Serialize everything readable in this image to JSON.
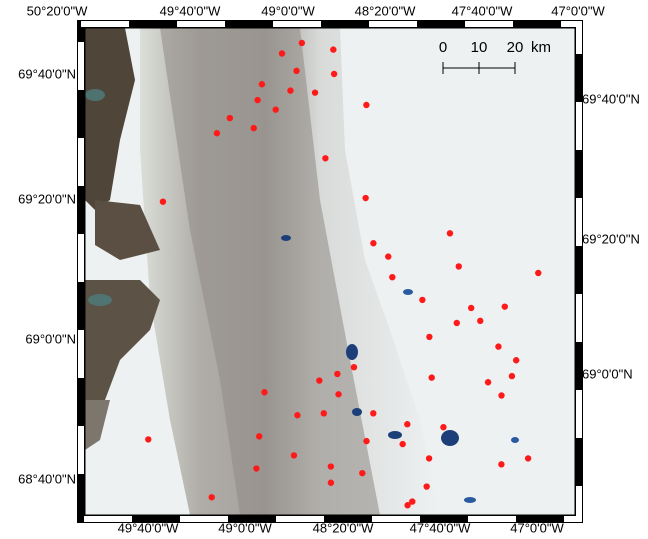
{
  "map": {
    "top_labels": [
      "50°20'0\"W",
      "49°40'0\"W",
      "49°0'0\"W",
      "48°20'0\"W",
      "47°40'0\"W",
      "47°0'0\"W"
    ],
    "bottom_labels": [
      "49°40'0\"W",
      "49°0'0\"W",
      "48°20'0\"W",
      "47°40'0\"W",
      "47°0'0\"W"
    ],
    "left_labels": [
      "69°40'0\"N",
      "69°20'0\"N",
      "69°0'0\"N",
      "68°40'0\"N"
    ],
    "right_labels": [
      "69°40'0\"N",
      "69°20'0\"N",
      "69°0'0\"N"
    ],
    "scale_bar": {
      "ticks": [
        0,
        10,
        20
      ],
      "unit": "km"
    },
    "point_color": "#ff1a1a",
    "points": [
      {
        "lon": -48.89,
        "lat": 69.79
      },
      {
        "lon": -49.02,
        "lat": 69.76
      },
      {
        "lon": -48.67,
        "lat": 69.78
      },
      {
        "lon": -48.91,
        "lat": 69.72
      },
      {
        "lon": -48.65,
        "lat": 69.72
      },
      {
        "lon": -49.14,
        "lat": 69.68
      },
      {
        "lon": -48.94,
        "lat": 69.67
      },
      {
        "lon": -48.77,
        "lat": 69.67
      },
      {
        "lon": -49.16,
        "lat": 69.64
      },
      {
        "lon": -48.41,
        "lat": 69.65
      },
      {
        "lon": -49.03,
        "lat": 69.62
      },
      {
        "lon": -49.34,
        "lat": 69.59
      },
      {
        "lon": -49.17,
        "lat": 69.57
      },
      {
        "lon": -49.42,
        "lat": 69.55
      },
      {
        "lon": -48.66,
        "lat": 69.51
      },
      {
        "lon": -49.75,
        "lat": 69.37
      },
      {
        "lon": -48.36,
        "lat": 69.42
      },
      {
        "lon": -48.28,
        "lat": 69.31
      },
      {
        "lon": -47.76,
        "lat": 69.35
      },
      {
        "lon": -48.17,
        "lat": 69.28
      },
      {
        "lon": -47.68,
        "lat": 69.27
      },
      {
        "lon": -47.13,
        "lat": 69.27
      },
      {
        "lon": -48.13,
        "lat": 69.23
      },
      {
        "lon": -47.91,
        "lat": 69.18
      },
      {
        "lon": -47.57,
        "lat": 69.17
      },
      {
        "lon": -47.34,
        "lat": 69.18
      },
      {
        "lon": -47.5,
        "lat": 69.14
      },
      {
        "lon": -47.66,
        "lat": 69.13
      },
      {
        "lon": -47.84,
        "lat": 69.09
      },
      {
        "lon": -47.36,
        "lat": 69.08
      },
      {
        "lon": -47.23,
        "lat": 69.05
      },
      {
        "lon": -48.34,
        "lat": 69.0
      },
      {
        "lon": -48.45,
        "lat": 68.98
      },
      {
        "lon": -47.8,
        "lat": 68.99
      },
      {
        "lon": -47.41,
        "lat": 68.99
      },
      {
        "lon": -47.25,
        "lat": 69.01
      },
      {
        "lon": -48.57,
        "lat": 68.96
      },
      {
        "lon": -48.94,
        "lat": 68.92
      },
      {
        "lon": -48.43,
        "lat": 68.93
      },
      {
        "lon": -47.31,
        "lat": 68.96
      },
      {
        "lon": -48.7,
        "lat": 68.87
      },
      {
        "lon": -48.52,
        "lat": 68.88
      },
      {
        "lon": -48.18,
        "lat": 68.89
      },
      {
        "lon": -47.94,
        "lat": 68.87
      },
      {
        "lon": -47.69,
        "lat": 68.87
      },
      {
        "lon": -49.71,
        "lat": 68.78
      },
      {
        "lon": -48.95,
        "lat": 68.81
      },
      {
        "lon": -48.21,
        "lat": 68.82
      },
      {
        "lon": -47.96,
        "lat": 68.82
      },
      {
        "lon": -48.7,
        "lat": 68.77
      },
      {
        "lon": -48.44,
        "lat": 68.75
      },
      {
        "lon": -47.77,
        "lat": 68.79
      },
      {
        "lon": -47.27,
        "lat": 68.79
      },
      {
        "lon": -47.09,
        "lat": 68.81
      },
      {
        "lon": -48.95,
        "lat": 68.73
      },
      {
        "lon": -48.22,
        "lat": 68.74
      },
      {
        "lon": -48.43,
        "lat": 68.71
      },
      {
        "lon": -47.77,
        "lat": 68.72
      },
      {
        "lon": -49.24,
        "lat": 68.65
      },
      {
        "lon": -47.86,
        "lat": 68.68
      },
      {
        "lon": -47.89,
        "lat": 68.67
      }
    ]
  }
}
